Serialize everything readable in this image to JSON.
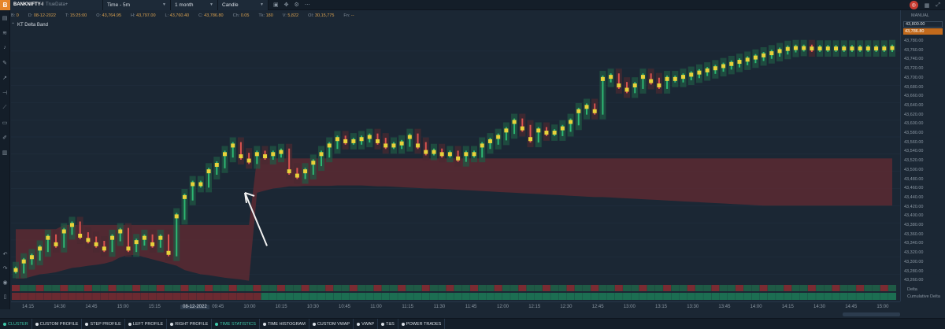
{
  "toolbar": {
    "logo": "B",
    "symbol": "BANKNIFTY-I",
    "source": "TrueData+",
    "timeframe": "Time - 5m",
    "range": "1 month",
    "chart_style": "Candle",
    "icons": [
      "screenshot-icon",
      "cursor-icon",
      "settings-icon",
      "more-icon"
    ]
  },
  "infobar": {
    "b_label": "B:",
    "b_value": "0",
    "d_label": "D:",
    "d_value": "08-12-2022",
    "t_label": "T:",
    "t_value": "15:25:00",
    "o_label": "O:",
    "o_value": "43,764.95",
    "h_label": "H:",
    "h_value": "43,797.00",
    "l_label": "L:",
    "l_value": "43,760.40",
    "c_label": "C:",
    "c_value": "43,786.80",
    "ch_label": "Ch:",
    "ch_value": "0.05",
    "tk_label": "Tk:",
    "tk_value": "180",
    "v_label": "V:",
    "v_value": "5,822",
    "oi_label": "OI:",
    "oi_value": "30,15,775",
    "fn_label": "Fn:",
    "fn_value": "--"
  },
  "indicator": {
    "name": "KT Delta Band"
  },
  "yaxis": {
    "mode": "MANUAL",
    "current_price": "43,786.80",
    "top_price": "43,800.00",
    "ticks": [
      "43,780.00",
      "43,760.00",
      "43,740.00",
      "43,720.00",
      "43,700.00",
      "43,680.00",
      "43,660.00",
      "43,640.00",
      "43,620.00",
      "43,600.00",
      "43,580.00",
      "43,560.00",
      "43,540.00",
      "43,520.00",
      "43,500.00",
      "43,480.00",
      "43,460.00",
      "43,440.00",
      "43,420.00",
      "43,400.00",
      "43,380.00",
      "43,360.00",
      "43,340.00",
      "43,320.00",
      "43,300.00",
      "43,280.00",
      "43,260.00"
    ],
    "panel_labels": [
      "Delta",
      "Cumulative Delta"
    ]
  },
  "xaxis": {
    "ticks": [
      "14:15",
      "14:30",
      "14:45",
      "15:00",
      "15:15",
      "08-12-2022",
      "09:45",
      "10:00",
      "10:15",
      "10:30",
      "10:45",
      "11:00",
      "11:15",
      "11:30",
      "11:45",
      "12:00",
      "12:15",
      "12:30",
      "12:45",
      "13:00",
      "13:15",
      "13:30",
      "13:45",
      "14:00",
      "14:15",
      "14:30",
      "14:45",
      "15:00"
    ]
  },
  "bottom_tabs": [
    {
      "label": "CLUSTER",
      "active": true
    },
    {
      "label": "CUSTOM PROFILE",
      "active": false
    },
    {
      "label": "STEP PROFILE",
      "active": false
    },
    {
      "label": "LEFT PROFILE",
      "active": false
    },
    {
      "label": "RIGHT PROFILE",
      "active": false
    },
    {
      "label": "TIME STATISTICS",
      "active": true
    },
    {
      "label": "TIME HISTOGRAM",
      "active": false
    },
    {
      "label": "CUSTOM VWAP",
      "active": false
    },
    {
      "label": "VWAP",
      "active": false
    },
    {
      "label": "T&S",
      "active": false
    },
    {
      "label": "POWER TRADES",
      "active": false
    }
  ],
  "chart_data": {
    "type": "line",
    "xlabel": "",
    "ylabel": "",
    "ylim": [
      43250,
      43800
    ],
    "x": [
      0,
      2,
      4,
      6,
      8,
      10,
      12,
      14,
      16,
      18,
      20,
      22,
      24,
      26,
      28,
      30,
      32,
      34,
      36,
      38,
      40,
      42,
      44,
      46,
      48,
      50,
      52,
      54,
      56,
      58,
      60,
      62,
      64,
      66,
      68,
      70,
      72,
      74,
      76,
      78,
      80,
      82,
      84,
      86,
      88,
      90,
      92,
      94,
      96,
      98,
      100,
      102,
      104,
      106,
      108,
      110,
      112,
      114,
      116,
      118,
      120,
      122,
      124,
      126,
      128,
      130,
      132,
      134,
      136,
      138,
      140,
      142,
      144,
      146,
      148,
      150,
      152,
      154,
      156,
      158,
      160,
      162,
      164,
      166,
      168,
      170,
      172,
      174,
      176,
      178,
      180,
      182,
      184,
      186,
      188,
      190,
      192,
      194,
      196,
      198,
      200,
      202,
      204,
      206,
      208,
      210,
      212,
      214,
      216,
      218
    ],
    "series": [
      {
        "values": [
          43270,
          43290,
          43300,
          43320,
          43345,
          43330,
          43360,
          43375,
          43350,
          43340,
          43330,
          43320,
          43345,
          43360,
          43320,
          43335,
          43345,
          43330,
          43345,
          43310,
          43395,
          43440,
          43470,
          43470,
          43500,
          43515,
          43540,
          43560,
          43535,
          43525,
          43540,
          43535,
          43540,
          43545,
          43500,
          43490,
          43500,
          43520,
          43540,
          43560,
          43575,
          43570,
          43570,
          43575,
          43580,
          43570,
          43560,
          43560,
          43565,
          43580,
          43560,
          43545,
          43545,
          43540,
          43540,
          43530,
          43540,
          43540,
          43560,
          43570,
          43580,
          43595,
          43615,
          43600,
          43575,
          43595,
          43590,
          43590,
          43600,
          43615,
          43640,
          43650,
          43640,
          43715,
          43720,
          43700,
          43690,
          43700,
          43720,
          43710,
          43700,
          43715,
          43715,
          43720,
          43725,
          43730,
          43735,
          43740,
          43745,
          43750,
          43755,
          43760,
          43765,
          43770,
          43775,
          43780,
          43785,
          43787,
          43787,
          43786,
          43786,
          43786,
          43786,
          43786,
          43786,
          43786,
          43786,
          43786,
          43786,
          43787
        ]
      }
    ],
    "band": {
      "type": "area",
      "upper": [
        43365,
        43365,
        43365,
        43365,
        43365,
        43365,
        43375,
        43375,
        43375,
        43375,
        43375,
        43375,
        43375,
        43375,
        43375,
        43375,
        43375,
        43375,
        43375,
        43375,
        43375,
        43375,
        43375,
        43375,
        43375,
        43375,
        43375,
        43375,
        43375,
        43375,
        43530,
        43530,
        43530,
        43530,
        43530,
        43530,
        43530,
        43530,
        43530,
        43530,
        43530,
        43530,
        43530,
        43530,
        43530,
        43530,
        43530,
        43530,
        43530,
        43530,
        43530,
        43530,
        43530,
        43530,
        43530,
        43530,
        43530,
        43530,
        43530,
        43530,
        43530,
        43530,
        43530,
        43530,
        43530,
        43530,
        43530,
        43530,
        43530,
        43530,
        43530,
        43530,
        43530,
        43530,
        43530,
        43530,
        43530,
        43530,
        43530,
        43530,
        43530,
        43530,
        43530,
        43530,
        43530,
        43530,
        43530,
        43530,
        43530,
        43530,
        43530,
        43530,
        43530,
        43530,
        43530,
        43530,
        43530,
        43530,
        43530,
        43530,
        43530,
        43530,
        43530,
        43530,
        43530,
        43530,
        43530,
        43530,
        43530,
        43530
      ],
      "lower": [
        43250,
        43250,
        43255,
        43260,
        43262,
        43265,
        43270,
        43275,
        43277,
        43280,
        43282,
        43285,
        43290,
        43300,
        43305,
        43305,
        43300,
        43295,
        43290,
        43285,
        43280,
        43270,
        43265,
        43260,
        43258,
        43255,
        43252,
        43250,
        43248,
        43245,
        43450,
        43455,
        43460,
        43462,
        43465,
        43465,
        43466,
        43466,
        43466,
        43466,
        43467,
        43467,
        43467,
        43467,
        43466,
        43465,
        43465,
        43464,
        43463,
        43462,
        43461,
        43460,
        43460,
        43459,
        43458,
        43457,
        43456,
        43455,
        43454,
        43453,
        43452,
        43451,
        43450,
        43449,
        43448,
        43447,
        43446,
        43445,
        43444,
        43443,
        43442,
        43441,
        43440,
        43440,
        43439,
        43438,
        43437,
        43436,
        43435,
        43434,
        43433,
        43432,
        43431,
        43430,
        43429,
        43428,
        43427,
        43426,
        43425,
        43424,
        43423,
        43422,
        43421,
        43420,
        43420,
        43420,
        43420,
        43420,
        43420,
        43420,
        43420,
        43420,
        43420,
        43420,
        43420,
        43420,
        43420,
        43420,
        43420,
        43420
      ]
    },
    "annotation_arrow": {
      "x": 57,
      "y": 43385,
      "to_y": 43450
    },
    "colors": {
      "up": "#2eb872",
      "down": "#d9534f",
      "poc": "#e8d23a",
      "band": "#5a2a32",
      "background": "#1b2734"
    }
  }
}
